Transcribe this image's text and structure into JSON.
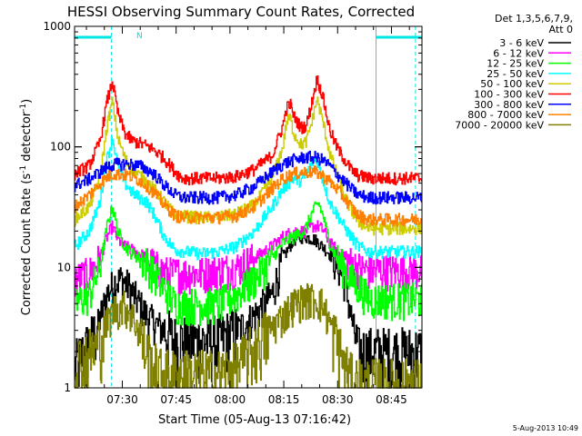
{
  "chart_data": {
    "type": "line",
    "title": "HESSI Observing Summary Count Rates, Corrected",
    "xlabel": "Start Time (05-Aug-13 07:16:42)",
    "ylabel_prefix": "Corrected Count Rate (s",
    "ylabel_sup1": "-1",
    "ylabel_mid": " detector",
    "ylabel_sup2": "-1",
    "ylabel_suffix": ")",
    "y_scale": "log",
    "ylim": [
      1,
      1000
    ],
    "xlim": [
      "07:16:42",
      "08:53:30"
    ],
    "x_ticks": [
      "07:30",
      "07:45",
      "08:00",
      "08:15",
      "08:30",
      "08:45"
    ],
    "y_ticks": [
      "1",
      "10",
      "100",
      "1000"
    ],
    "legend_header": [
      "Det 1,3,5,6,7,9,",
      "Att 0"
    ],
    "legend_position": "right",
    "footer": "5-Aug-2013 10:49",
    "night_marker": "N",
    "series": [
      {
        "name": "3 - 6 keV",
        "color": "#000000",
        "values": [
          [
            0,
            1.5
          ],
          [
            6,
            3
          ],
          [
            9,
            6
          ],
          [
            11,
            7.5
          ],
          [
            13,
            8
          ],
          [
            15,
            7
          ],
          [
            18,
            5
          ],
          [
            20,
            4
          ],
          [
            22,
            3.5
          ],
          [
            25,
            3
          ],
          [
            28,
            2.5
          ],
          [
            35,
            2.5
          ],
          [
            40,
            2.5
          ],
          [
            45,
            3
          ],
          [
            50,
            4
          ],
          [
            55,
            6
          ],
          [
            58,
            12
          ],
          [
            61,
            17
          ],
          [
            64,
            18
          ],
          [
            67,
            17
          ],
          [
            70,
            14
          ],
          [
            73,
            11
          ],
          [
            75,
            8
          ],
          [
            77,
            4
          ],
          [
            79,
            2
          ],
          [
            82,
            2
          ],
          [
            86,
            2
          ],
          [
            90,
            2
          ],
          [
            95,
            2
          ],
          [
            96,
            2
          ]
        ]
      },
      {
        "name": "6 - 12 keV",
        "color": "#ff00ff",
        "values": [
          [
            0,
            8
          ],
          [
            4,
            9
          ],
          [
            7,
            12
          ],
          [
            9,
            18
          ],
          [
            10.5,
            22
          ],
          [
            12,
            17
          ],
          [
            14,
            15
          ],
          [
            16,
            14
          ],
          [
            18,
            13
          ],
          [
            20,
            12
          ],
          [
            23,
            10
          ],
          [
            26,
            9
          ],
          [
            30,
            9
          ],
          [
            35,
            9
          ],
          [
            40,
            9.5
          ],
          [
            45,
            10
          ],
          [
            50,
            12
          ],
          [
            55,
            15
          ],
          [
            58,
            18
          ],
          [
            61,
            20
          ],
          [
            64,
            20
          ],
          [
            66.5,
            22
          ],
          [
            68,
            22
          ],
          [
            69.5,
            20
          ],
          [
            71,
            16
          ],
          [
            73,
            14
          ],
          [
            75,
            12
          ],
          [
            77,
            11
          ],
          [
            79,
            10
          ],
          [
            82,
            9.5
          ],
          [
            86,
            9.5
          ],
          [
            90,
            9.5
          ],
          [
            96,
            9.5
          ]
        ]
      },
      {
        "name": "12 - 25 keV",
        "color": "#00ff00",
        "values": [
          [
            0,
            5
          ],
          [
            4,
            6
          ],
          [
            7,
            10
          ],
          [
            9,
            22
          ],
          [
            10.5,
            32
          ],
          [
            12,
            20
          ],
          [
            14,
            15
          ],
          [
            16,
            13
          ],
          [
            18,
            12
          ],
          [
            20,
            11
          ],
          [
            23,
            8
          ],
          [
            26,
            6
          ],
          [
            28,
            5
          ],
          [
            35,
            5
          ],
          [
            40,
            5
          ],
          [
            45,
            6
          ],
          [
            50,
            8
          ],
          [
            55,
            12
          ],
          [
            58,
            16
          ],
          [
            61,
            18
          ],
          [
            64,
            20
          ],
          [
            66.5,
            30
          ],
          [
            68,
            34
          ],
          [
            69.5,
            25
          ],
          [
            71,
            16
          ],
          [
            73,
            12
          ],
          [
            75,
            10
          ],
          [
            77,
            8
          ],
          [
            79,
            7
          ],
          [
            82,
            5.5
          ],
          [
            86,
            5.5
          ],
          [
            90,
            5.5
          ],
          [
            96,
            5.5
          ]
        ]
      },
      {
        "name": "25 - 50 keV",
        "color": "#00ffff",
        "values": [
          [
            0,
            15
          ],
          [
            4,
            20
          ],
          [
            7,
            35
          ],
          [
            9,
            80
          ],
          [
            10.5,
            120
          ],
          [
            12,
            70
          ],
          [
            14,
            50
          ],
          [
            16,
            42
          ],
          [
            18,
            38
          ],
          [
            20,
            35
          ],
          [
            22,
            28
          ],
          [
            25,
            18
          ],
          [
            28,
            14
          ],
          [
            35,
            13
          ],
          [
            40,
            13.5
          ],
          [
            45,
            15
          ],
          [
            50,
            20
          ],
          [
            55,
            32
          ],
          [
            58,
            45
          ],
          [
            61,
            55
          ],
          [
            63,
            52
          ],
          [
            64.5,
            58
          ],
          [
            66,
            75
          ],
          [
            67.5,
            80
          ],
          [
            69,
            55
          ],
          [
            71,
            35
          ],
          [
            73,
            28
          ],
          [
            75,
            22
          ],
          [
            77,
            18
          ],
          [
            79,
            15
          ],
          [
            82,
            13.5
          ],
          [
            86,
            13.5
          ],
          [
            90,
            13.5
          ],
          [
            96,
            13.5
          ]
        ]
      },
      {
        "name": "50 - 100 keV",
        "color": "#cccc00",
        "values": [
          [
            0,
            25
          ],
          [
            4,
            32
          ],
          [
            7,
            55
          ],
          [
            9,
            150
          ],
          [
            10.5,
            240
          ],
          [
            12,
            120
          ],
          [
            14,
            80
          ],
          [
            16,
            65
          ],
          [
            18,
            58
          ],
          [
            20,
            52
          ],
          [
            22,
            45
          ],
          [
            25,
            35
          ],
          [
            28,
            27
          ],
          [
            35,
            26
          ],
          [
            40,
            26
          ],
          [
            45,
            28
          ],
          [
            50,
            33
          ],
          [
            55,
            55
          ],
          [
            58,
            100
          ],
          [
            59,
            160
          ],
          [
            60,
            175
          ],
          [
            61,
            130
          ],
          [
            63,
            105
          ],
          [
            64.5,
            110
          ],
          [
            66,
            160
          ],
          [
            67.5,
            250
          ],
          [
            69,
            170
          ],
          [
            71,
            90
          ],
          [
            73,
            60
          ],
          [
            75,
            40
          ],
          [
            77,
            30
          ],
          [
            79,
            24
          ],
          [
            82,
            21
          ],
          [
            86,
            21
          ],
          [
            90,
            21
          ],
          [
            96,
            21
          ]
        ]
      },
      {
        "name": "100 - 300 keV",
        "color": "#ff0000",
        "values": [
          [
            0,
            60
          ],
          [
            4,
            70
          ],
          [
            7,
            110
          ],
          [
            9,
            240
          ],
          [
            10.5,
            350
          ],
          [
            12,
            190
          ],
          [
            14,
            130
          ],
          [
            16,
            112
          ],
          [
            18,
            108
          ],
          [
            20,
            102
          ],
          [
            22,
            95
          ],
          [
            25,
            80
          ],
          [
            28,
            62
          ],
          [
            30,
            55
          ],
          [
            35,
            55
          ],
          [
            40,
            55
          ],
          [
            45,
            57
          ],
          [
            50,
            65
          ],
          [
            55,
            85
          ],
          [
            58,
            150
          ],
          [
            59,
            210
          ],
          [
            60,
            230
          ],
          [
            61,
            180
          ],
          [
            63,
            145
          ],
          [
            64.5,
            150
          ],
          [
            66,
            230
          ],
          [
            67.5,
            370
          ],
          [
            69,
            270
          ],
          [
            71,
            140
          ],
          [
            73,
            100
          ],
          [
            75,
            80
          ],
          [
            77,
            65
          ],
          [
            79,
            58
          ],
          [
            82,
            55
          ],
          [
            86,
            55
          ],
          [
            90,
            55
          ],
          [
            96,
            55
          ]
        ]
      },
      {
        "name": "300 - 800 keV",
        "color": "#0000ff",
        "values": [
          [
            0,
            48
          ],
          [
            4,
            54
          ],
          [
            7,
            62
          ],
          [
            9,
            68
          ],
          [
            11,
            72
          ],
          [
            15,
            72
          ],
          [
            18,
            70
          ],
          [
            20,
            65
          ],
          [
            22,
            60
          ],
          [
            25,
            48
          ],
          [
            28,
            40
          ],
          [
            30,
            38
          ],
          [
            35,
            38
          ],
          [
            40,
            38
          ],
          [
            45,
            40
          ],
          [
            50,
            47
          ],
          [
            55,
            62
          ],
          [
            58,
            72
          ],
          [
            61,
            78
          ],
          [
            64,
            82
          ],
          [
            67,
            82
          ],
          [
            69,
            78
          ],
          [
            71,
            70
          ],
          [
            73,
            60
          ],
          [
            75,
            52
          ],
          [
            77,
            45
          ],
          [
            79,
            40
          ],
          [
            82,
            38
          ],
          [
            86,
            38
          ],
          [
            90,
            38
          ],
          [
            96,
            38
          ]
        ]
      },
      {
        "name": "800 - 7000 keV",
        "color": "#ff8000",
        "values": [
          [
            0,
            32
          ],
          [
            4,
            40
          ],
          [
            7,
            50
          ],
          [
            9,
            56
          ],
          [
            11,
            60
          ],
          [
            15,
            58
          ],
          [
            18,
            53
          ],
          [
            20,
            48
          ],
          [
            22,
            42
          ],
          [
            25,
            33
          ],
          [
            28,
            27
          ],
          [
            30,
            26
          ],
          [
            35,
            26
          ],
          [
            40,
            26
          ],
          [
            45,
            27
          ],
          [
            50,
            32
          ],
          [
            55,
            45
          ],
          [
            58,
            55
          ],
          [
            61,
            60
          ],
          [
            64,
            62
          ],
          [
            67,
            62
          ],
          [
            69,
            58
          ],
          [
            71,
            52
          ],
          [
            73,
            45
          ],
          [
            75,
            38
          ],
          [
            77,
            32
          ],
          [
            79,
            27
          ],
          [
            82,
            25
          ],
          [
            86,
            25
          ],
          [
            90,
            25
          ],
          [
            96,
            25
          ]
        ]
      },
      {
        "name": "7000 - 20000 keV",
        "color": "#808000",
        "values": [
          [
            0,
            1.6
          ],
          [
            6,
            2.2
          ],
          [
            9,
            3.5
          ],
          [
            11,
            4.5
          ],
          [
            14,
            4.8
          ],
          [
            16,
            4
          ],
          [
            18,
            3
          ],
          [
            20,
            2
          ],
          [
            22,
            1.5
          ],
          [
            25,
            1.3
          ],
          [
            35,
            1.3
          ],
          [
            40,
            1.3
          ],
          [
            45,
            1.5
          ],
          [
            50,
            2.2
          ],
          [
            55,
            3.2
          ],
          [
            58,
            4
          ],
          [
            61,
            5
          ],
          [
            64,
            5.5
          ],
          [
            67,
            5.5
          ],
          [
            69,
            5
          ],
          [
            71,
            3.5
          ],
          [
            73,
            2.5
          ],
          [
            75,
            1.6
          ],
          [
            77,
            1.2
          ],
          [
            80,
            1.1
          ],
          [
            96,
            1.1
          ]
        ]
      }
    ]
  }
}
